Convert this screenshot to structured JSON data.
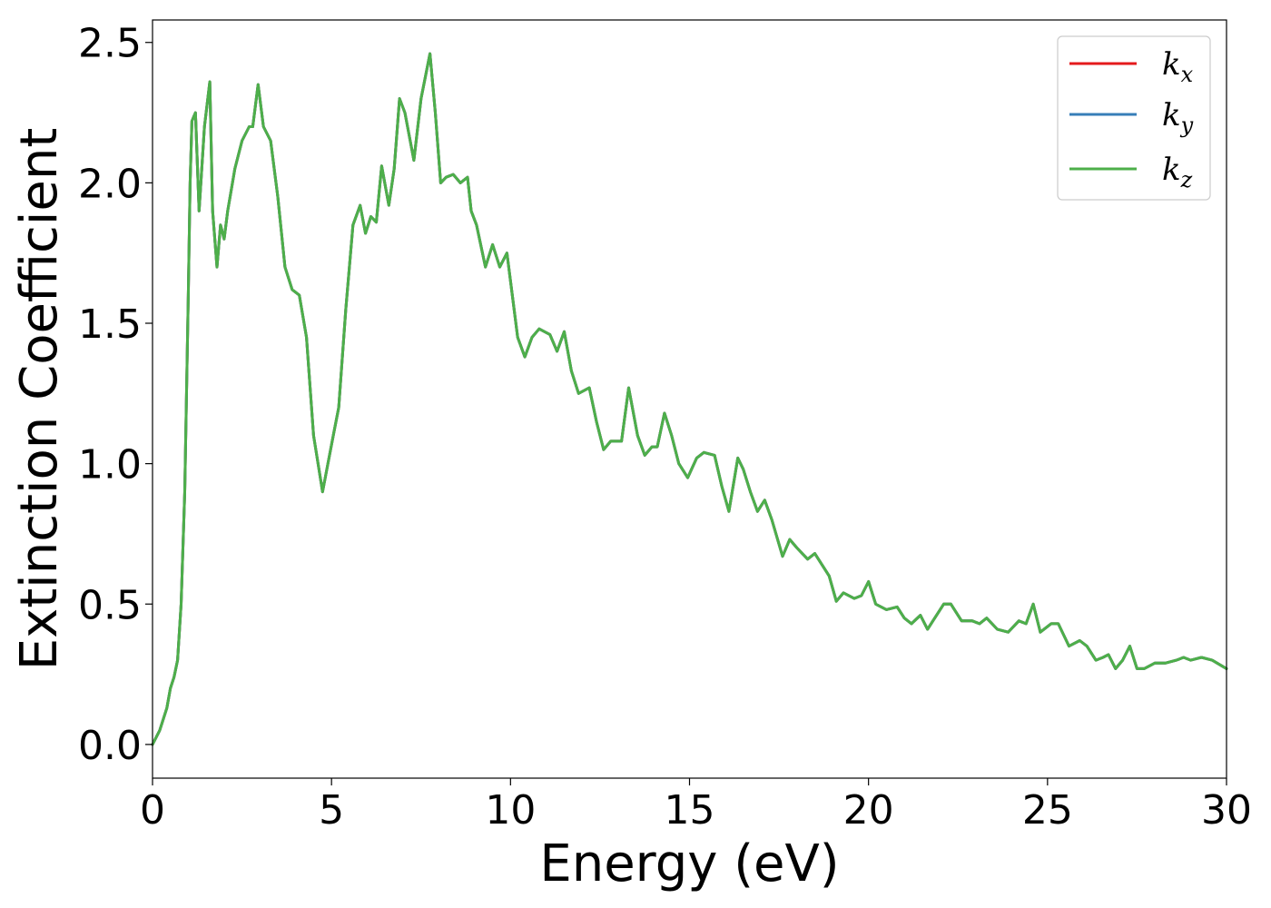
{
  "chart_data": {
    "type": "line",
    "title": "",
    "xlabel": "Energy (eV)",
    "ylabel": "Extinction Coefficient",
    "xlim": [
      0,
      30
    ],
    "ylim": [
      -0.12,
      2.58
    ],
    "xticks": [
      "0",
      "5",
      "10",
      "15",
      "20",
      "25",
      "30"
    ],
    "yticks": [
      "0.0",
      "0.5",
      "1.0",
      "1.5",
      "2.0",
      "2.5"
    ],
    "legend_position": "top-right",
    "grid": false,
    "x": [
      0,
      0.2,
      0.4,
      0.5,
      0.6,
      0.7,
      0.8,
      0.9,
      1.0,
      1.05,
      1.1,
      1.2,
      1.3,
      1.45,
      1.6,
      1.68,
      1.8,
      1.9,
      2.0,
      2.1,
      2.3,
      2.5,
      2.7,
      2.8,
      2.95,
      3.1,
      3.3,
      3.5,
      3.7,
      3.9,
      4.1,
      4.3,
      4.5,
      4.75,
      4.9,
      5.05,
      5.2,
      5.4,
      5.6,
      5.8,
      5.95,
      6.1,
      6.25,
      6.4,
      6.6,
      6.75,
      6.9,
      7.05,
      7.3,
      7.5,
      7.75,
      7.9,
      8.05,
      8.2,
      8.4,
      8.6,
      8.8,
      8.9,
      9.05,
      9.3,
      9.5,
      9.7,
      9.9,
      10.05,
      10.2,
      10.4,
      10.6,
      10.8,
      11.1,
      11.3,
      11.5,
      11.7,
      11.9,
      12.2,
      12.4,
      12.6,
      12.8,
      13.1,
      13.3,
      13.55,
      13.75,
      13.95,
      14.1,
      14.3,
      14.5,
      14.7,
      14.95,
      15.2,
      15.4,
      15.7,
      15.9,
      16.1,
      16.35,
      16.5,
      16.7,
      16.9,
      17.1,
      17.3,
      17.6,
      17.8,
      18.0,
      18.3,
      18.5,
      18.9,
      19.1,
      19.3,
      19.6,
      19.8,
      20.0,
      20.2,
      20.5,
      20.8,
      21.0,
      21.2,
      21.45,
      21.65,
      21.8,
      22.1,
      22.3,
      22.6,
      22.9,
      23.1,
      23.3,
      23.6,
      23.9,
      24.2,
      24.4,
      24.6,
      24.8,
      25.1,
      25.3,
      25.6,
      25.9,
      26.1,
      26.35,
      26.55,
      26.7,
      26.9,
      27.1,
      27.3,
      27.5,
      27.7,
      28.0,
      28.3,
      28.6,
      28.8,
      29.0,
      29.3,
      29.6,
      30.0
    ],
    "series": [
      {
        "name": "k_x",
        "color": "#e41a1c",
        "values": [
          0.0,
          0.05,
          0.13,
          0.2,
          0.24,
          0.3,
          0.5,
          0.9,
          1.6,
          2.0,
          2.22,
          2.25,
          1.9,
          2.2,
          2.36,
          1.9,
          1.7,
          1.85,
          1.8,
          1.9,
          2.05,
          2.15,
          2.2,
          2.2,
          2.35,
          2.2,
          2.15,
          1.95,
          1.7,
          1.62,
          1.6,
          1.45,
          1.1,
          0.9,
          1.0,
          1.1,
          1.2,
          1.55,
          1.85,
          1.92,
          1.82,
          1.88,
          1.86,
          2.06,
          1.92,
          2.05,
          2.3,
          2.25,
          2.08,
          2.3,
          2.46,
          2.25,
          2.0,
          2.02,
          2.03,
          2.0,
          2.02,
          1.9,
          1.85,
          1.7,
          1.78,
          1.7,
          1.75,
          1.6,
          1.45,
          1.38,
          1.45,
          1.48,
          1.46,
          1.4,
          1.47,
          1.33,
          1.25,
          1.27,
          1.15,
          1.05,
          1.08,
          1.08,
          1.27,
          1.1,
          1.03,
          1.06,
          1.06,
          1.18,
          1.1,
          1.0,
          0.95,
          1.02,
          1.04,
          1.03,
          0.92,
          0.83,
          1.02,
          0.98,
          0.9,
          0.83,
          0.87,
          0.8,
          0.67,
          0.73,
          0.7,
          0.66,
          0.68,
          0.6,
          0.51,
          0.54,
          0.52,
          0.53,
          0.58,
          0.5,
          0.48,
          0.49,
          0.45,
          0.43,
          0.46,
          0.41,
          0.44,
          0.5,
          0.5,
          0.44,
          0.44,
          0.43,
          0.45,
          0.41,
          0.4,
          0.44,
          0.43,
          0.5,
          0.4,
          0.43,
          0.43,
          0.35,
          0.37,
          0.35,
          0.3,
          0.31,
          0.32,
          0.27,
          0.3,
          0.35,
          0.27,
          0.27,
          0.29,
          0.29,
          0.3,
          0.31,
          0.3,
          0.31,
          0.3,
          0.27
        ]
      },
      {
        "name": "k_y",
        "color": "#377eb8",
        "values": [
          0.0,
          0.05,
          0.13,
          0.2,
          0.24,
          0.3,
          0.5,
          0.9,
          1.6,
          2.0,
          2.22,
          2.25,
          1.9,
          2.2,
          2.36,
          1.9,
          1.7,
          1.85,
          1.8,
          1.9,
          2.05,
          2.15,
          2.2,
          2.2,
          2.35,
          2.2,
          2.15,
          1.95,
          1.7,
          1.62,
          1.6,
          1.45,
          1.1,
          0.9,
          1.0,
          1.1,
          1.2,
          1.55,
          1.85,
          1.92,
          1.82,
          1.88,
          1.86,
          2.06,
          1.92,
          2.05,
          2.3,
          2.25,
          2.08,
          2.3,
          2.46,
          2.25,
          2.0,
          2.02,
          2.03,
          2.0,
          2.02,
          1.9,
          1.85,
          1.7,
          1.78,
          1.7,
          1.75,
          1.6,
          1.45,
          1.38,
          1.45,
          1.48,
          1.46,
          1.4,
          1.47,
          1.33,
          1.25,
          1.27,
          1.15,
          1.05,
          1.08,
          1.08,
          1.27,
          1.1,
          1.03,
          1.06,
          1.06,
          1.18,
          1.1,
          1.0,
          0.95,
          1.02,
          1.04,
          1.03,
          0.92,
          0.83,
          1.02,
          0.98,
          0.9,
          0.83,
          0.87,
          0.8,
          0.67,
          0.73,
          0.7,
          0.66,
          0.68,
          0.6,
          0.51,
          0.54,
          0.52,
          0.53,
          0.58,
          0.5,
          0.48,
          0.49,
          0.45,
          0.43,
          0.46,
          0.41,
          0.44,
          0.5,
          0.5,
          0.44,
          0.44,
          0.43,
          0.45,
          0.41,
          0.4,
          0.44,
          0.43,
          0.5,
          0.4,
          0.43,
          0.43,
          0.35,
          0.37,
          0.35,
          0.3,
          0.31,
          0.32,
          0.27,
          0.3,
          0.35,
          0.27,
          0.27,
          0.29,
          0.29,
          0.3,
          0.31,
          0.3,
          0.31,
          0.3,
          0.27
        ]
      },
      {
        "name": "k_z",
        "color": "#4daf4a",
        "values": [
          0.0,
          0.05,
          0.13,
          0.2,
          0.24,
          0.3,
          0.5,
          0.9,
          1.6,
          2.0,
          2.22,
          2.25,
          1.9,
          2.2,
          2.36,
          1.9,
          1.7,
          1.85,
          1.8,
          1.9,
          2.05,
          2.15,
          2.2,
          2.2,
          2.35,
          2.2,
          2.15,
          1.95,
          1.7,
          1.62,
          1.6,
          1.45,
          1.1,
          0.9,
          1.0,
          1.1,
          1.2,
          1.55,
          1.85,
          1.92,
          1.82,
          1.88,
          1.86,
          2.06,
          1.92,
          2.05,
          2.3,
          2.25,
          2.08,
          2.3,
          2.46,
          2.25,
          2.0,
          2.02,
          2.03,
          2.0,
          2.02,
          1.9,
          1.85,
          1.7,
          1.78,
          1.7,
          1.75,
          1.6,
          1.45,
          1.38,
          1.45,
          1.48,
          1.46,
          1.4,
          1.47,
          1.33,
          1.25,
          1.27,
          1.15,
          1.05,
          1.08,
          1.08,
          1.27,
          1.1,
          1.03,
          1.06,
          1.06,
          1.18,
          1.1,
          1.0,
          0.95,
          1.02,
          1.04,
          1.03,
          0.92,
          0.83,
          1.02,
          0.98,
          0.9,
          0.83,
          0.87,
          0.8,
          0.67,
          0.73,
          0.7,
          0.66,
          0.68,
          0.6,
          0.51,
          0.54,
          0.52,
          0.53,
          0.58,
          0.5,
          0.48,
          0.49,
          0.45,
          0.43,
          0.46,
          0.41,
          0.44,
          0.5,
          0.5,
          0.44,
          0.44,
          0.43,
          0.45,
          0.41,
          0.4,
          0.44,
          0.43,
          0.5,
          0.4,
          0.43,
          0.43,
          0.35,
          0.37,
          0.35,
          0.3,
          0.31,
          0.32,
          0.27,
          0.3,
          0.35,
          0.27,
          0.27,
          0.29,
          0.29,
          0.3,
          0.31,
          0.3,
          0.31,
          0.3,
          0.27
        ]
      }
    ],
    "legend": [
      {
        "symbol": "k",
        "subscript": "x",
        "color": "#e41a1c"
      },
      {
        "symbol": "k",
        "subscript": "y",
        "color": "#377eb8"
      },
      {
        "symbol": "k",
        "subscript": "z",
        "color": "#4daf4a"
      }
    ]
  }
}
